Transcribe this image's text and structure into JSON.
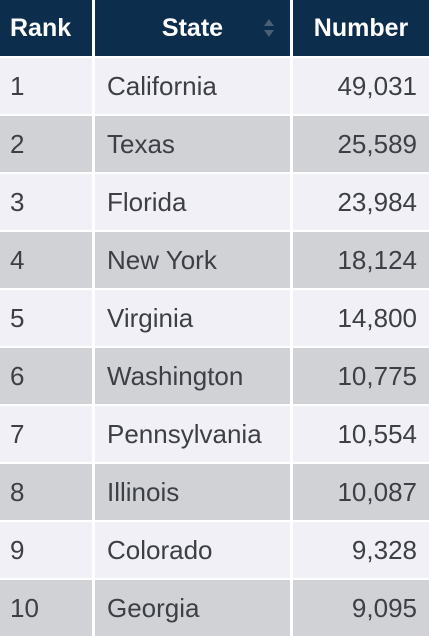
{
  "colors": {
    "header_bg": "#0d2d4d",
    "header_text": "#ffffff",
    "row_light": "#f1f0f7",
    "row_dark": "#d0d2d6",
    "cell_text": "#3c3f45"
  },
  "table": {
    "headers": {
      "rank": "Rank",
      "state": "State",
      "number": "Number"
    },
    "state_sort_icon": "sort-icon",
    "rows": [
      {
        "rank": "1",
        "state": "California",
        "number": "49,031"
      },
      {
        "rank": "2",
        "state": "Texas",
        "number": "25,589"
      },
      {
        "rank": "3",
        "state": "Florida",
        "number": "23,984"
      },
      {
        "rank": "4",
        "state": "New York",
        "number": "18,124"
      },
      {
        "rank": "5",
        "state": "Virginia",
        "number": "14,800"
      },
      {
        "rank": "6",
        "state": "Washington",
        "number": "10,775"
      },
      {
        "rank": "7",
        "state": "Pennsylvania",
        "number": "10,554"
      },
      {
        "rank": "8",
        "state": "Illinois",
        "number": "10,087"
      },
      {
        "rank": "9",
        "state": "Colorado",
        "number": "9,328"
      },
      {
        "rank": "10",
        "state": "Georgia",
        "number": "9,095"
      }
    ]
  }
}
